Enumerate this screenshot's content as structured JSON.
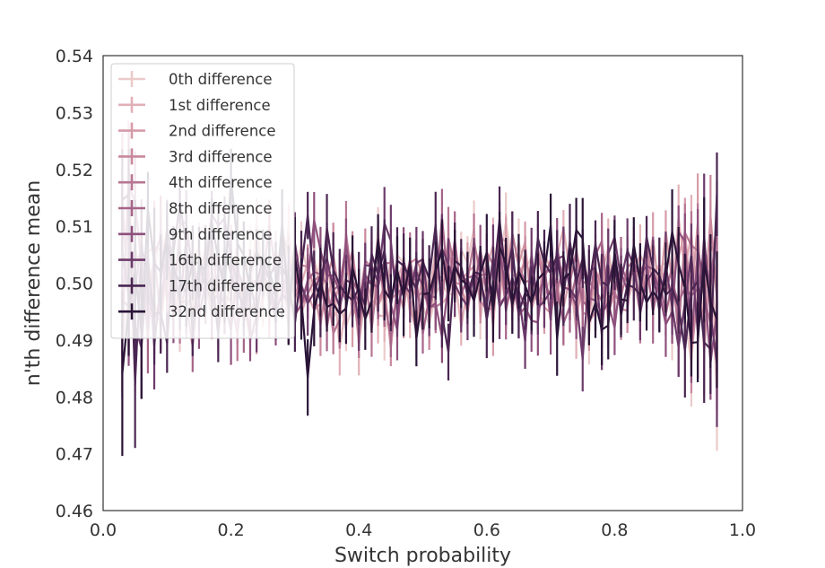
{
  "chart_data": {
    "type": "line",
    "xlabel": "Switch probability",
    "ylabel": "n'th difference mean",
    "xlim": [
      0.0,
      1.0
    ],
    "ylim": [
      0.46,
      0.54
    ],
    "xticks": [
      "0.0",
      "0.2",
      "0.4",
      "0.6",
      "0.8",
      "1.0"
    ],
    "yticks": [
      "0.46",
      "0.47",
      "0.48",
      "0.49",
      "0.50",
      "0.51",
      "0.52",
      "0.53",
      "0.54"
    ],
    "grid": false,
    "legend_position": "top-left",
    "x_range": [
      0.03,
      0.96
    ],
    "points_per_series": 94,
    "center": 0.5,
    "series": [
      {
        "name": "0th difference",
        "color": "#ebcaca",
        "noise": 0.0045,
        "err": 0.004,
        "seed": 11
      },
      {
        "name": "1st difference",
        "color": "#e2b0b7",
        "noise": 0.0045,
        "err": 0.0042,
        "seed": 23
      },
      {
        "name": "2nd difference",
        "color": "#d69ba8",
        "noise": 0.0045,
        "err": 0.0042,
        "seed": 37
      },
      {
        "name": "3rd difference",
        "color": "#c9889c",
        "noise": 0.0045,
        "err": 0.0044,
        "seed": 41
      },
      {
        "name": "4th difference",
        "color": "#b77692",
        "noise": 0.0045,
        "err": 0.0045,
        "seed": 53
      },
      {
        "name": "8th difference",
        "color": "#a56488",
        "noise": 0.0046,
        "err": 0.0046,
        "seed": 67
      },
      {
        "name": "9th difference",
        "color": "#8e507c",
        "noise": 0.0047,
        "err": 0.0048,
        "seed": 71
      },
      {
        "name": "16th difference",
        "color": "#6c3a6a",
        "noise": 0.0048,
        "err": 0.005,
        "seed": 83
      },
      {
        "name": "17th difference",
        "color": "#4a2652",
        "noise": 0.005,
        "err": 0.0052,
        "seed": 97
      },
      {
        "name": "32nd difference",
        "color": "#2a1437",
        "noise": 0.0052,
        "err": 0.0055,
        "seed": 101
      }
    ]
  }
}
